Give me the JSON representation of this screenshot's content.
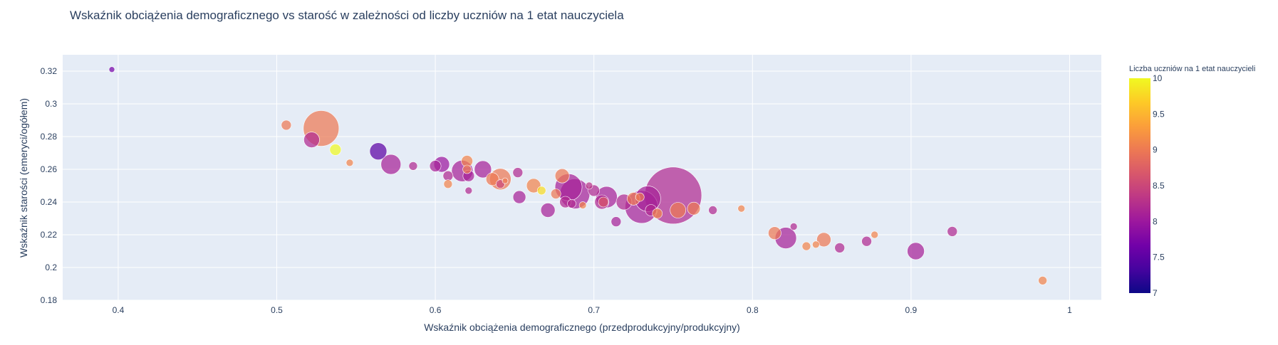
{
  "chart_data": {
    "type": "scatter",
    "title": "Wskaźnik obciążenia demograficznego vs starość w zależności od liczby uczniów na 1 etat nauczyciela",
    "xlabel": "Wskaźnik obciążenia demograficznego (przedprodukcyjny/produkcyjny)",
    "ylabel": "Wskaźnik starości (emeryci/ogółem)",
    "xlim": [
      0.365,
      1.02
    ],
    "ylim": [
      0.18,
      0.33
    ],
    "xticks": [
      0.4,
      0.5,
      0.6,
      0.7,
      0.8,
      0.9,
      1
    ],
    "xtick_labels": [
      "0.4",
      "0.5",
      "0.6",
      "0.7",
      "0.8",
      "0.9",
      "1"
    ],
    "yticks": [
      0.18,
      0.2,
      0.22,
      0.24,
      0.26,
      0.28,
      0.3,
      0.32
    ],
    "ytick_labels": [
      "0.18",
      "0.2",
      "0.22",
      "0.24",
      "0.26",
      "0.28",
      "0.3",
      "0.32"
    ],
    "grid": true,
    "colorbar": {
      "title": "Liczba uczniów na 1 etat nauczycieli",
      "range": [
        7,
        10
      ],
      "ticks": [
        7,
        7.5,
        8,
        8.5,
        9,
        9.5,
        10
      ],
      "tick_labels": [
        "7",
        "7.5",
        "8",
        "8.5",
        "9",
        "9.5",
        "10"
      ],
      "colorscale": [
        "#0d0887",
        "#46039f",
        "#7201a8",
        "#9c179e",
        "#bd3786",
        "#d8576b",
        "#ed7953",
        "#fb9f3a",
        "#fdca26",
        "#f0f921"
      ]
    },
    "points": [
      {
        "x": 0.396,
        "y": 0.321,
        "c": 7.7,
        "s": 4
      },
      {
        "x": 0.506,
        "y": 0.287,
        "c": 9.0,
        "s": 7
      },
      {
        "x": 0.528,
        "y": 0.285,
        "c": 9.0,
        "s": 25
      },
      {
        "x": 0.522,
        "y": 0.278,
        "c": 8.2,
        "s": 11
      },
      {
        "x": 0.537,
        "y": 0.272,
        "c": 10.0,
        "s": 8
      },
      {
        "x": 0.546,
        "y": 0.264,
        "c": 9.1,
        "s": 5
      },
      {
        "x": 0.564,
        "y": 0.271,
        "c": 7.5,
        "s": 12
      },
      {
        "x": 0.572,
        "y": 0.263,
        "c": 8.1,
        "s": 14
      },
      {
        "x": 0.586,
        "y": 0.262,
        "c": 8.2,
        "s": 6
      },
      {
        "x": 0.6,
        "y": 0.262,
        "c": 8.1,
        "s": 8
      },
      {
        "x": 0.604,
        "y": 0.263,
        "c": 8.0,
        "s": 11
      },
      {
        "x": 0.608,
        "y": 0.256,
        "c": 8.2,
        "s": 7
      },
      {
        "x": 0.608,
        "y": 0.251,
        "c": 9.1,
        "s": 6
      },
      {
        "x": 0.617,
        "y": 0.259,
        "c": 8.1,
        "s": 15
      },
      {
        "x": 0.62,
        "y": 0.265,
        "c": 9.1,
        "s": 8
      },
      {
        "x": 0.62,
        "y": 0.26,
        "c": 9.0,
        "s": 6
      },
      {
        "x": 0.621,
        "y": 0.256,
        "c": 8.1,
        "s": 8
      },
      {
        "x": 0.621,
        "y": 0.247,
        "c": 8.2,
        "s": 5
      },
      {
        "x": 0.63,
        "y": 0.26,
        "c": 8.1,
        "s": 12
      },
      {
        "x": 0.636,
        "y": 0.254,
        "c": 9.0,
        "s": 9
      },
      {
        "x": 0.641,
        "y": 0.254,
        "c": 9.0,
        "s": 15
      },
      {
        "x": 0.641,
        "y": 0.251,
        "c": 8.5,
        "s": 6
      },
      {
        "x": 0.644,
        "y": 0.253,
        "c": 9.0,
        "s": 4
      },
      {
        "x": 0.652,
        "y": 0.258,
        "c": 8.2,
        "s": 7
      },
      {
        "x": 0.653,
        "y": 0.243,
        "c": 8.1,
        "s": 9
      },
      {
        "x": 0.662,
        "y": 0.25,
        "c": 9.1,
        "s": 10
      },
      {
        "x": 0.667,
        "y": 0.247,
        "c": 9.8,
        "s": 6
      },
      {
        "x": 0.671,
        "y": 0.235,
        "c": 8.1,
        "s": 10
      },
      {
        "x": 0.676,
        "y": 0.245,
        "c": 9.0,
        "s": 7
      },
      {
        "x": 0.68,
        "y": 0.256,
        "c": 9.0,
        "s": 10
      },
      {
        "x": 0.682,
        "y": 0.24,
        "c": 8.2,
        "s": 8
      },
      {
        "x": 0.684,
        "y": 0.249,
        "c": 8.1,
        "s": 19
      },
      {
        "x": 0.686,
        "y": 0.239,
        "c": 8.2,
        "s": 6
      },
      {
        "x": 0.688,
        "y": 0.245,
        "c": 8.1,
        "s": 21
      },
      {
        "x": 0.693,
        "y": 0.238,
        "c": 9.1,
        "s": 5
      },
      {
        "x": 0.697,
        "y": 0.25,
        "c": 8.3,
        "s": 5
      },
      {
        "x": 0.7,
        "y": 0.247,
        "c": 8.2,
        "s": 8
      },
      {
        "x": 0.705,
        "y": 0.24,
        "c": 8.2,
        "s": 10
      },
      {
        "x": 0.706,
        "y": 0.24,
        "c": 8.7,
        "s": 7
      },
      {
        "x": 0.708,
        "y": 0.243,
        "c": 8.1,
        "s": 15
      },
      {
        "x": 0.714,
        "y": 0.228,
        "c": 8.1,
        "s": 7
      },
      {
        "x": 0.719,
        "y": 0.24,
        "c": 8.2,
        "s": 11
      },
      {
        "x": 0.725,
        "y": 0.242,
        "c": 9.0,
        "s": 9
      },
      {
        "x": 0.729,
        "y": 0.243,
        "c": 9.0,
        "s": 6
      },
      {
        "x": 0.73,
        "y": 0.237,
        "c": 8.1,
        "s": 23
      },
      {
        "x": 0.734,
        "y": 0.242,
        "c": 8.1,
        "s": 18
      },
      {
        "x": 0.736,
        "y": 0.235,
        "c": 8.2,
        "s": 8
      },
      {
        "x": 0.74,
        "y": 0.233,
        "c": 9.1,
        "s": 7
      },
      {
        "x": 0.75,
        "y": 0.244,
        "c": 8.2,
        "s": 40
      },
      {
        "x": 0.753,
        "y": 0.235,
        "c": 9.0,
        "s": 11
      },
      {
        "x": 0.763,
        "y": 0.236,
        "c": 9.0,
        "s": 9
      },
      {
        "x": 0.775,
        "y": 0.235,
        "c": 8.2,
        "s": 6
      },
      {
        "x": 0.793,
        "y": 0.236,
        "c": 9.1,
        "s": 5
      },
      {
        "x": 0.814,
        "y": 0.221,
        "c": 9.0,
        "s": 9
      },
      {
        "x": 0.821,
        "y": 0.218,
        "c": 8.1,
        "s": 15
      },
      {
        "x": 0.826,
        "y": 0.225,
        "c": 8.2,
        "s": 5
      },
      {
        "x": 0.834,
        "y": 0.213,
        "c": 9.1,
        "s": 6
      },
      {
        "x": 0.84,
        "y": 0.214,
        "c": 9.1,
        "s": 5
      },
      {
        "x": 0.845,
        "y": 0.217,
        "c": 9.0,
        "s": 10
      },
      {
        "x": 0.855,
        "y": 0.212,
        "c": 8.2,
        "s": 7
      },
      {
        "x": 0.872,
        "y": 0.216,
        "c": 8.2,
        "s": 7
      },
      {
        "x": 0.877,
        "y": 0.22,
        "c": 9.1,
        "s": 5
      },
      {
        "x": 0.903,
        "y": 0.21,
        "c": 8.1,
        "s": 12
      },
      {
        "x": 0.926,
        "y": 0.222,
        "c": 8.2,
        "s": 7
      },
      {
        "x": 0.983,
        "y": 0.192,
        "c": 9.1,
        "s": 6
      }
    ]
  }
}
